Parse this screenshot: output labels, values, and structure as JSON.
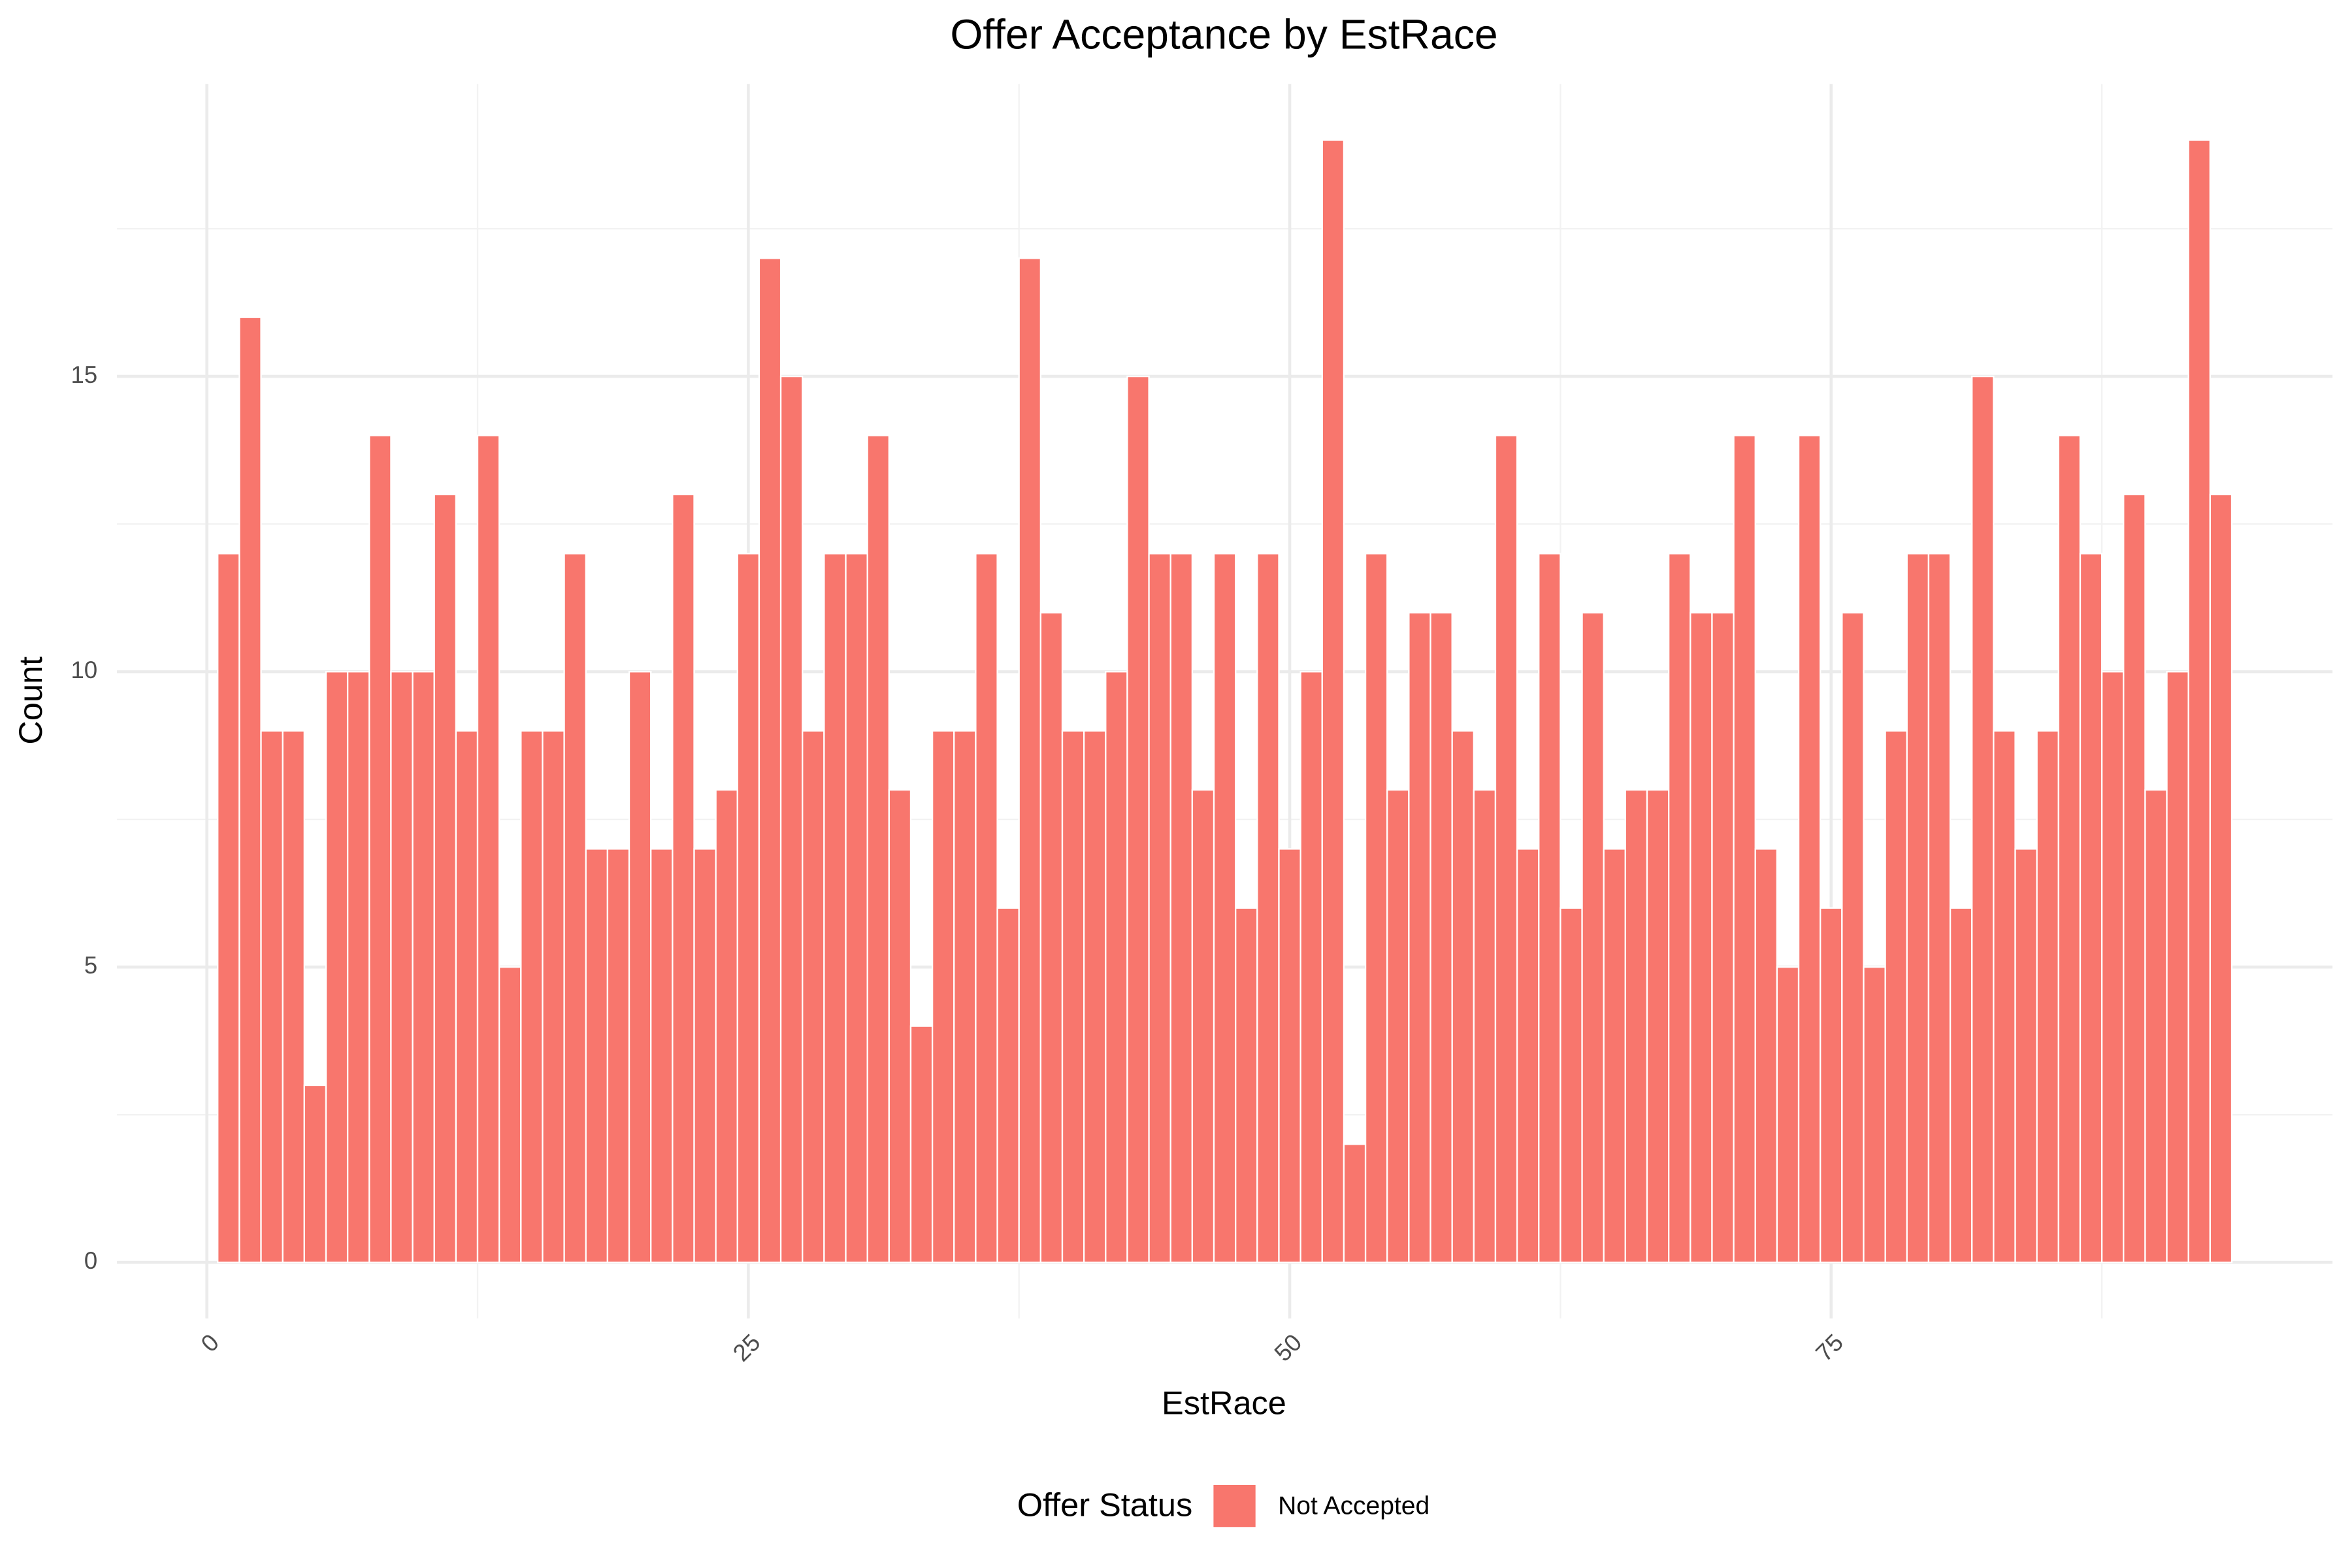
{
  "chart_data": {
    "type": "bar",
    "title": "Offer Acceptance by EstRace",
    "x_label": "EstRace",
    "y_label": "Count",
    "legend_title": "Offer Status",
    "legend_position": "bottom",
    "series": [
      {
        "name": "Not Accepted",
        "color": "#F8766D",
        "values": [
          12,
          16,
          9,
          9,
          3,
          10,
          10,
          14,
          10,
          10,
          13,
          9,
          14,
          5,
          9,
          9,
          12,
          7,
          7,
          10,
          7,
          13,
          7,
          8,
          12,
          17,
          15,
          9,
          12,
          12,
          14,
          8,
          4,
          9,
          9,
          12,
          6,
          17,
          11,
          9,
          9,
          10,
          15,
          12,
          12,
          8,
          12,
          6,
          12,
          7,
          10,
          19,
          2,
          12,
          8,
          11,
          11,
          9,
          8,
          14,
          7,
          12,
          6,
          11,
          7,
          8,
          8,
          12,
          11,
          11,
          14,
          7,
          5,
          14,
          6,
          11,
          5,
          9,
          12,
          12,
          6,
          15,
          9,
          7,
          9,
          14,
          12,
          10,
          13,
          8,
          10,
          19,
          13
        ]
      }
    ],
    "x": [
      1,
      2,
      3,
      4,
      5,
      6,
      7,
      8,
      9,
      10,
      11,
      12,
      13,
      14,
      15,
      16,
      17,
      18,
      19,
      20,
      21,
      22,
      23,
      24,
      25,
      26,
      27,
      28,
      29,
      30,
      31,
      32,
      33,
      34,
      35,
      36,
      37,
      38,
      39,
      40,
      41,
      42,
      43,
      44,
      45,
      46,
      47,
      48,
      49,
      50,
      51,
      52,
      53,
      54,
      55,
      56,
      57,
      58,
      59,
      60,
      61,
      62,
      63,
      64,
      65,
      66,
      67,
      68,
      69,
      70,
      71,
      72,
      73,
      74,
      75,
      76,
      77,
      78,
      79,
      80,
      81,
      82,
      83,
      84,
      85,
      86,
      87,
      88,
      89,
      90,
      91,
      92,
      93
    ],
    "xlim": [
      -4.15,
      98.15
    ],
    "xticks": [
      0,
      25,
      50,
      75
    ],
    "xminor": [
      12.5,
      37.5,
      62.5,
      87.5
    ],
    "ylim": [
      -0.95,
      19.95
    ],
    "yticks": [
      0,
      5,
      10,
      15
    ],
    "yminor": [
      2.5,
      7.5,
      12.5,
      17.5
    ],
    "grid": true
  }
}
